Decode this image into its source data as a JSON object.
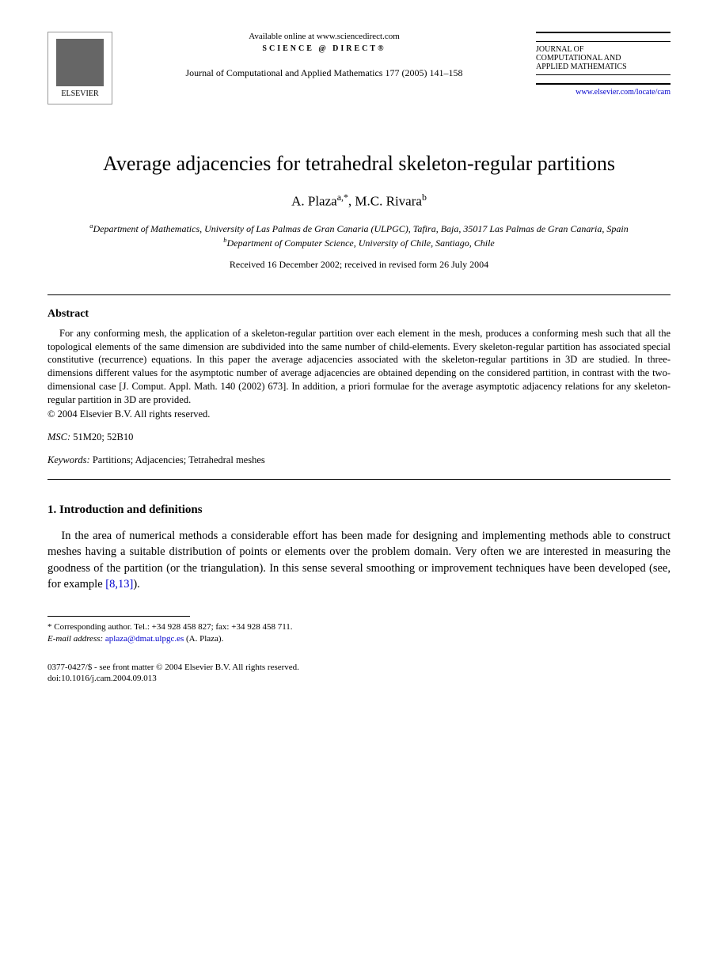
{
  "header": {
    "publisher": "ELSEVIER",
    "available_online": "Available online at www.sciencedirect.com",
    "science_direct": "SCIENCE @ DIRECT®",
    "journal_ref": "Journal of Computational and Applied Mathematics 177 (2005) 141–158",
    "journal_name_line1": "JOURNAL OF",
    "journal_name_line2": "COMPUTATIONAL AND",
    "journal_name_line3": "APPLIED MATHEMATICS",
    "journal_url": "www.elsevier.com/locate/cam"
  },
  "title": "Average adjacencies for tetrahedral skeleton-regular partitions",
  "authors": {
    "a1_name": "A. Plaza",
    "a1_affil": "a,",
    "a1_corr": "*",
    "a2_name": "M.C. Rivara",
    "a2_affil": "b"
  },
  "affiliations": {
    "a": "Department of Mathematics, University of Las Palmas de Gran Canaria (ULPGC), Tafira, Baja, 35017 Las Palmas de Gran Canaria, Spain",
    "b": "Department of Computer Science, University of Chile, Santiago, Chile"
  },
  "received": "Received 16 December 2002; received in revised form 26 July 2004",
  "abstract": {
    "heading": "Abstract",
    "body": "For any conforming mesh, the application of a skeleton-regular partition over each element in the mesh, produces a conforming mesh such that all the topological elements of the same dimension are subdivided into the same number of child-elements. Every skeleton-regular partition has associated special constitutive (recurrence) equations. In this paper the average adjacencies associated with the skeleton-regular partitions in 3D are studied. In three-dimensions different values for the asymptotic number of average adjacencies are obtained depending on the considered partition, in contrast with the two-dimensional case [J. Comput. Appl. Math. 140 (2002) 673]. In addition, a priori formulae for the average asymptotic adjacency relations for any skeleton-regular partition in 3D are provided.",
    "copyright": "© 2004 Elsevier B.V. All rights reserved."
  },
  "msc": {
    "label": "MSC:",
    "codes": "51M20; 52B10"
  },
  "keywords": {
    "label": "Keywords:",
    "list": "Partitions; Adjacencies; Tetrahedral meshes"
  },
  "section1": {
    "heading": "1.  Introduction and definitions",
    "body_part1": "In the area of numerical methods a considerable effort has been made for designing and implementing methods able to construct meshes having a suitable distribution of points or elements over the problem domain. Very often we are interested in measuring the goodness of the partition (or the triangulation). In this sense several smoothing or improvement techniques have been developed (see, for example ",
    "ref": "[8,13]",
    "body_part2": ")."
  },
  "footnotes": {
    "corr": "* Corresponding author. Tel.: +34 928 458 827; fax: +34 928 458 711.",
    "email_label": "E-mail address:",
    "email": "aplaza@dmat.ulpgc.es",
    "email_suffix": "(A. Plaza)."
  },
  "bottom": {
    "line1": "0377-0427/$ - see front matter © 2004 Elsevier B.V. All rights reserved.",
    "line2": "doi:10.1016/j.cam.2004.09.013"
  },
  "colors": {
    "text": "#000000",
    "link": "#0000cc",
    "background": "#ffffff"
  }
}
